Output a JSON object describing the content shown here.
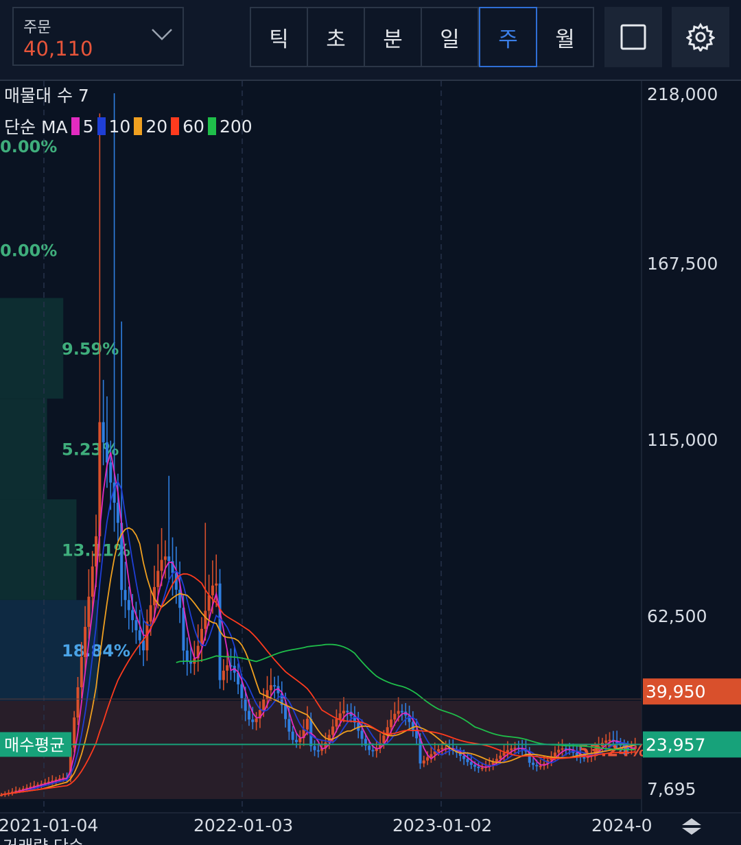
{
  "header": {
    "order_label": "주문",
    "order_value": "40,110",
    "periods": [
      "틱",
      "초",
      "분",
      "일",
      "주",
      "월"
    ],
    "active_period": "주",
    "icons": [
      "square-icon",
      "gear-icon"
    ]
  },
  "chart_data": {
    "type": "candlestick",
    "overlay_title": "매물대 수 7",
    "ma": {
      "label": "단순 MA",
      "periods": [
        "5",
        "10",
        "20",
        "60",
        "200"
      ],
      "colors": [
        "#e22bc0",
        "#1f3fd6",
        "#f0a020",
        "#ff3b1e",
        "#1fbf4a"
      ]
    },
    "y_ticks": [
      "218,000",
      "167,500",
      "115,000",
      "62,500",
      "7,695"
    ],
    "ylim": [
      7695,
      218000
    ],
    "x_ticks": [
      "2021-01-04",
      "2022-01-03",
      "2023-01-02",
      "2024-0"
    ],
    "volume_profile": [
      {
        "label": "0.00%",
        "low": 187000,
        "high": 218000,
        "pct": 0.0
      },
      {
        "label": "0.00%",
        "low": 157000,
        "high": 187000,
        "pct": 0.0
      },
      {
        "label": "9.59%",
        "low": 127000,
        "high": 157000,
        "pct": 9.59
      },
      {
        "label": "5.23%",
        "low": 97000,
        "high": 127000,
        "pct": 5.23
      },
      {
        "label": "13.11%",
        "low": 67000,
        "high": 97000,
        "pct": 13.11
      },
      {
        "label": "18.84%",
        "low": 37000,
        "high": 67000,
        "pct": 18.84
      },
      {
        "label": "53.24%",
        "low": 7695,
        "high": 37000,
        "pct": 53.24
      }
    ],
    "price_levels": {
      "current": {
        "value": "39,950",
        "color": "#d9502c"
      },
      "avg_buy": {
        "value": "23,957",
        "label": "매수평균",
        "color": "#17a27a"
      }
    },
    "bottom_partial_label": "거래량 단순"
  }
}
